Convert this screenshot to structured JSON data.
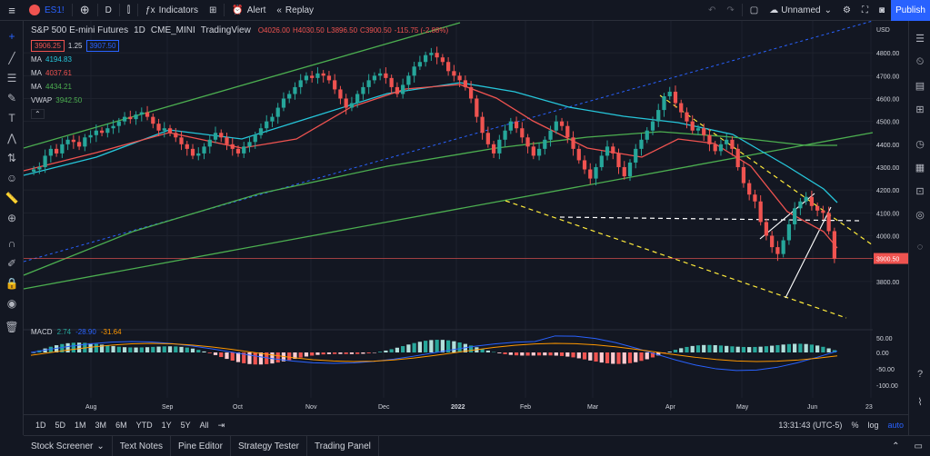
{
  "topbar": {
    "symbol": "ES1!",
    "interval": "D",
    "indicators": "Indicators",
    "alert": "Alert",
    "replay": "Replay",
    "layout_name": "Unnamed",
    "publish": "Publish"
  },
  "legend": {
    "title": "S&P 500 E-mini Futures",
    "interval": "1D",
    "exchange": "CME_MINI",
    "source": "TradingView",
    "ohlc": {
      "o": "O4026.00",
      "h": "H4030.50",
      "l": "L3896.50",
      "c": "C3900.50",
      "chg": "-115.75 (-2.88%)"
    },
    "bid": "3906.25",
    "spread": "1.25",
    "ask": "3907.50",
    "ma1": {
      "label": "MA",
      "value": "4194.83",
      "color": "#26c6da"
    },
    "ma2": {
      "label": "MA",
      "value": "4037.61",
      "color": "#ef5350"
    },
    "ma3": {
      "label": "MA",
      "value": "4434.21",
      "color": "#4caf50"
    },
    "vwap": {
      "label": "VWAP",
      "value": "3942.50",
      "color": "#4caf50"
    }
  },
  "macd": {
    "label": "MACD",
    "v1": "2.74",
    "v2": "-28.90",
    "v3": "-31.64"
  },
  "price_scale": {
    "currency": "USD",
    "ticks": [
      "4800.00",
      "4700.00",
      "4600.00",
      "4500.00",
      "4400.00",
      "4300.00",
      "4200.00",
      "4100.00",
      "4000.00",
      "3900.00",
      "3800.00"
    ],
    "last_price": "3900.50",
    "macd_ticks": [
      "50.00",
      "0.00",
      "-50.00",
      "-100.00"
    ]
  },
  "time_axis": [
    "Aug",
    "Sep",
    "Oct",
    "Nov",
    "Dec",
    "2022",
    "Feb",
    "Mar",
    "Apr",
    "May",
    "Jun",
    "23"
  ],
  "range_buttons": [
    "1D",
    "5D",
    "1M",
    "3M",
    "6M",
    "YTD",
    "1Y",
    "5Y",
    "All"
  ],
  "clock": "13:31:43 (UTC-5)",
  "scale_toggles": [
    "%",
    "log",
    "auto"
  ],
  "bottom_tabs": [
    "Stock Screener",
    "Text Notes",
    "Pine Editor",
    "Strategy Tester",
    "Trading Panel"
  ],
  "colors": {
    "up": "#26a69a",
    "down": "#ef5350",
    "bg": "#131722",
    "accent": "#2962ff"
  },
  "chart_data": {
    "type": "candlestick",
    "title": "S&P 500 E-mini Futures",
    "ylim": [
      3700,
      4900
    ],
    "closes": [
      4290,
      4300,
      4350,
      4380,
      4360,
      4400,
      4420,
      4410,
      4390,
      4430,
      4440,
      4460,
      4450,
      4470,
      4480,
      4500,
      4520,
      4510,
      4530,
      4540,
      4520,
      4490,
      4460,
      4470,
      4450,
      4430,
      4400,
      4380,
      4350,
      4360,
      4390,
      4420,
      4450,
      4430,
      4400,
      4380,
      4360,
      4390,
      4410,
      4440,
      4470,
      4500,
      4520,
      4560,
      4600,
      4620,
      4650,
      4680,
      4700,
      4690,
      4710,
      4700,
      4680,
      4640,
      4600,
      4560,
      4580,
      4620,
      4650,
      4680,
      4700,
      4710,
      4690,
      4650,
      4620,
      4660,
      4700,
      4740,
      4760,
      4790,
      4800,
      4780,
      4760,
      4720,
      4700,
      4680,
      4650,
      4600,
      4520,
      4450,
      4400,
      4360,
      4420,
      4460,
      4500,
      4470,
      4430,
      4390,
      4350,
      4380,
      4420,
      4460,
      4500,
      4480,
      4430,
      4380,
      4330,
      4290,
      4250,
      4300,
      4350,
      4390,
      4360,
      4300,
      4260,
      4320,
      4380,
      4420,
      4460,
      4500,
      4550,
      4610,
      4630,
      4580,
      4540,
      4500,
      4460,
      4470,
      4440,
      4400,
      4370,
      4400,
      4420,
      4380,
      4300,
      4230,
      4180,
      4150,
      4060,
      4000,
      3950,
      3920,
      3980,
      4050,
      4120,
      4150,
      4170,
      4130,
      4110,
      4100,
      4020,
      3900
    ]
  }
}
